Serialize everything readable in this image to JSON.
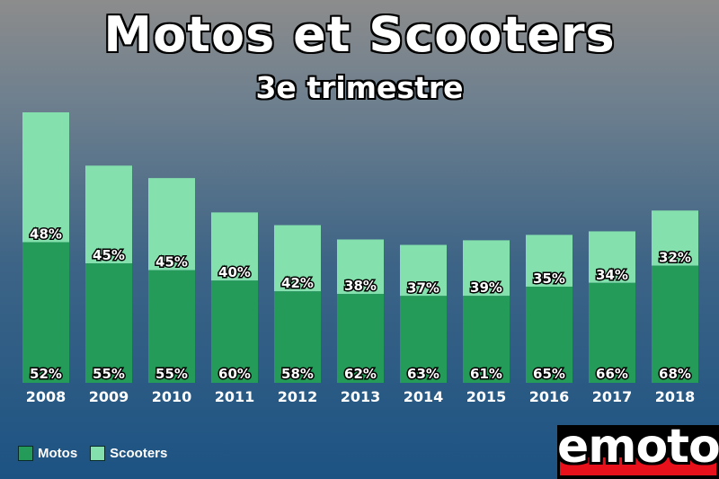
{
  "chart_data": {
    "type": "bar",
    "stacked": true,
    "title": "Motos et Scooters",
    "subtitle": "3e trimestre",
    "categories": [
      "2008",
      "2009",
      "2010",
      "2011",
      "2012",
      "2013",
      "2014",
      "2015",
      "2016",
      "2017",
      "2018"
    ],
    "totals": [
      100,
      80.3,
      75.7,
      63.0,
      58.3,
      53.0,
      51.0,
      52.7,
      54.7,
      56.0,
      63.7
    ],
    "series": [
      {
        "name": "Motos",
        "color": "#259b59",
        "percent_labels": [
          "52%",
          "55%",
          "55%",
          "60%",
          "58%",
          "62%",
          "63%",
          "61%",
          "65%",
          "66%",
          "68%"
        ]
      },
      {
        "name": "Scooters",
        "color": "#84e0ac",
        "percent_labels": [
          "48%",
          "45%",
          "45%",
          "40%",
          "42%",
          "38%",
          "37%",
          "39%",
          "35%",
          "34%",
          "32%"
        ]
      }
    ],
    "ylim": [
      0,
      100
    ],
    "grid": false,
    "legend_position": "bottom-left"
  },
  "logo": {
    "text": "emoto",
    "colors": {
      "background": "#000000",
      "band": "#e8101b",
      "text": "#ffffff"
    }
  }
}
